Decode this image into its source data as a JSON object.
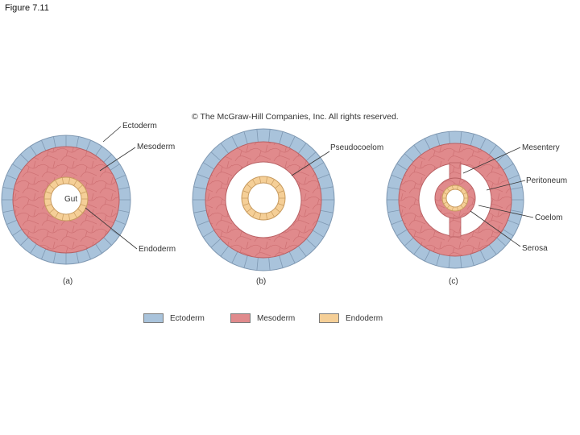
{
  "figure_title": "Figure 7.11",
  "copyright": "© The McGraw-Hill Companies, Inc. All rights reserved.",
  "colors": {
    "ectoderm": "#a9c3db",
    "mesoderm": "#e08a8c",
    "endoderm": "#f5cf97",
    "cavity": "#ffffff"
  },
  "panels": [
    {
      "label": "(a)",
      "labels": [
        "Ectoderm",
        "Mesoderm",
        "Endoderm"
      ],
      "gut_label": "Gut"
    },
    {
      "label": "(b)",
      "labels": [
        "Pseudocoelom"
      ]
    },
    {
      "label": "(c)",
      "labels": [
        "Mesentery",
        "Peritoneum",
        "Coelom",
        "Serosa"
      ]
    }
  ],
  "legend": [
    {
      "label": "Ectoderm",
      "color": "#a9c3db"
    },
    {
      "label": "Mesoderm",
      "color": "#e08a8c"
    },
    {
      "label": "Endoderm",
      "color": "#f5cf97"
    }
  ]
}
